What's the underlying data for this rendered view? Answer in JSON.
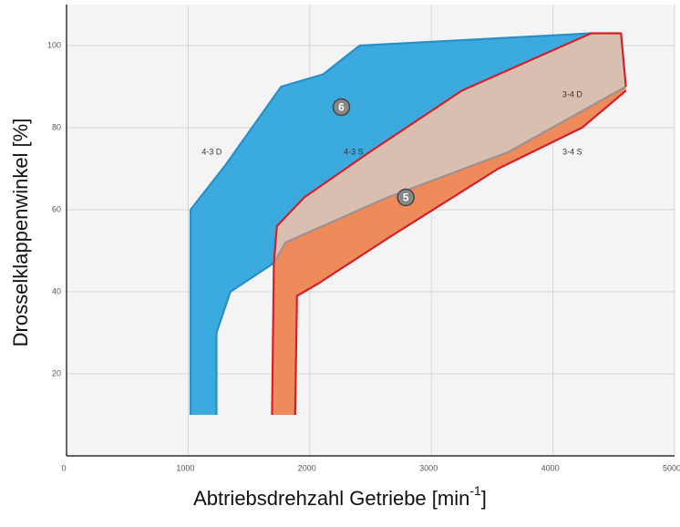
{
  "chart_data": {
    "type": "area",
    "xlabel": {
      "text": "Abtriebsdrehzahl Getriebe [min",
      "sup": "-1",
      "end": "]"
    },
    "ylabel": "Drosselklappenwinkel [%]",
    "xlim": [
      0,
      5000
    ],
    "xticks": [
      0,
      1000,
      2000,
      3000,
      4000,
      5000
    ],
    "ylim": [
      0,
      110
    ],
    "yticks": [
      20,
      40,
      60,
      80,
      100
    ],
    "grid": true,
    "regions": [
      {
        "color": "#3aaadf",
        "x": [
          1020,
          1020,
          1310,
          1765,
          2110,
          2410,
          4315,
          4010,
          3250,
          2490,
          1955,
          1730,
          1705,
          1347,
          1233,
          1233
        ],
        "y": [
          10,
          60,
          71,
          90,
          93,
          100,
          103,
          99,
          89,
          74,
          63,
          56,
          47,
          40,
          30,
          10
        ]
      },
      {
        "color": "#d9bfb0",
        "x": [
          1705,
          1730,
          1955,
          2490,
          3250,
          4010,
          4315,
          4560,
          4600,
          3630,
          2640,
          1800
        ],
        "y": [
          47,
          56,
          63,
          74,
          89,
          99,
          103,
          103,
          90,
          74,
          63,
          52
        ]
      },
      {
        "color": "#ef8a5a",
        "x": [
          1690,
          1705,
          1800,
          2640,
          3630,
          4600,
          4600,
          4240,
          3550,
          2640,
          2070,
          1895,
          1880
        ],
        "y": [
          10,
          47,
          52,
          63,
          74,
          90,
          89,
          80,
          70,
          53,
          42,
          39,
          10
        ]
      }
    ],
    "lines": [
      {
        "color": "#2a8fc4",
        "x": [
          1020,
          1020,
          1310,
          1765,
          2110,
          2410,
          4315
        ],
        "y": [
          10,
          60,
          71,
          90,
          93,
          100,
          103
        ]
      },
      {
        "color": "#2a8fc4",
        "x": [
          1705,
          1347,
          1233,
          1233
        ],
        "y": [
          47,
          40,
          30,
          10
        ]
      },
      {
        "color": "#a09090",
        "x": [
          1705,
          1800,
          2640,
          3630,
          4600
        ],
        "y": [
          47,
          52,
          63,
          74,
          90
        ]
      },
      {
        "color": "#d4202a",
        "x": [
          1690,
          1705,
          1730,
          1955,
          2490,
          3250,
          4010,
          4315,
          4560,
          4600
        ],
        "y": [
          10,
          47,
          56,
          63,
          74,
          89,
          99,
          103,
          103,
          90
        ]
      },
      {
        "color": "#d4202a",
        "x": [
          1880,
          1895,
          2070,
          2640,
          3550,
          4240,
          4600
        ],
        "y": [
          10,
          39,
          42,
          53,
          70,
          80,
          89
        ]
      }
    ],
    "annotations": [
      {
        "text": "4-3 D",
        "x": 1195,
        "y": 74
      },
      {
        "text": "4-3 S",
        "x": 2360,
        "y": 74
      },
      {
        "text": "3-4 D",
        "x": 4160,
        "y": 88
      },
      {
        "text": "3-4 S",
        "x": 4160,
        "y": 74
      }
    ],
    "markers": [
      {
        "text": "6",
        "x": 2260,
        "y": 85
      },
      {
        "text": "5",
        "x": 2790,
        "y": 63
      }
    ]
  }
}
